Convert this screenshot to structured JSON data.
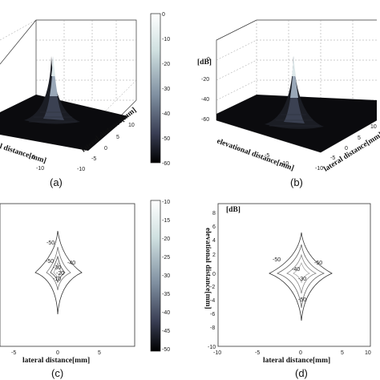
{
  "panels": {
    "a": {
      "caption": "(a)",
      "axis_label_lateral": "lateral distance[mm]",
      "axis_label_elevational": "elevational distance[mm]",
      "ticks_lateral": [
        "10",
        "5",
        "0",
        "-5",
        "-10"
      ],
      "ticks_elevational": [
        "-5",
        "-10"
      ]
    },
    "b": {
      "caption": "(b)",
      "unit": "[dB]",
      "ticks_z": [
        "0",
        "-20",
        "-40",
        "-60"
      ],
      "axis_label_lateral": "lateral distance[mm]",
      "axis_label_elevational": "elevational distance[mm]",
      "ticks_lateral": [
        "10",
        "5",
        "0",
        "-5",
        "-10"
      ],
      "ticks_elevational": [
        "-5",
        "-10"
      ]
    },
    "c": {
      "caption": "(c)",
      "axis_label_lateral": "lateral distance[mm]",
      "ticks_x": [
        "-5",
        "0",
        "5"
      ],
      "contour_labels": [
        "-50",
        "-50",
        "-40",
        "-30",
        "-20",
        "-10"
      ]
    },
    "d": {
      "caption": "(d)",
      "unit": "[dB]",
      "axis_label_lateral": "lateral distance[mm]",
      "axis_label_elevational": "elevational distance[mm]",
      "ticks_x": [
        "-10",
        "-5",
        "0",
        "5",
        "10"
      ],
      "ticks_y": [
        "8",
        "6",
        "4",
        "2",
        "0",
        "-2",
        "-4",
        "-6",
        "-8",
        "-10"
      ],
      "contour_labels": [
        "-50",
        "-50",
        "-50",
        "-40",
        "-30"
      ]
    }
  },
  "colorbar_top": {
    "ticks": [
      "0",
      "-10",
      "-20",
      "-30",
      "-40",
      "-50",
      "-60"
    ]
  },
  "colorbar_bottom": {
    "ticks": [
      "-10",
      "-15",
      "-20",
      "-25",
      "-30",
      "-35",
      "-40",
      "-45",
      "-50"
    ]
  }
}
